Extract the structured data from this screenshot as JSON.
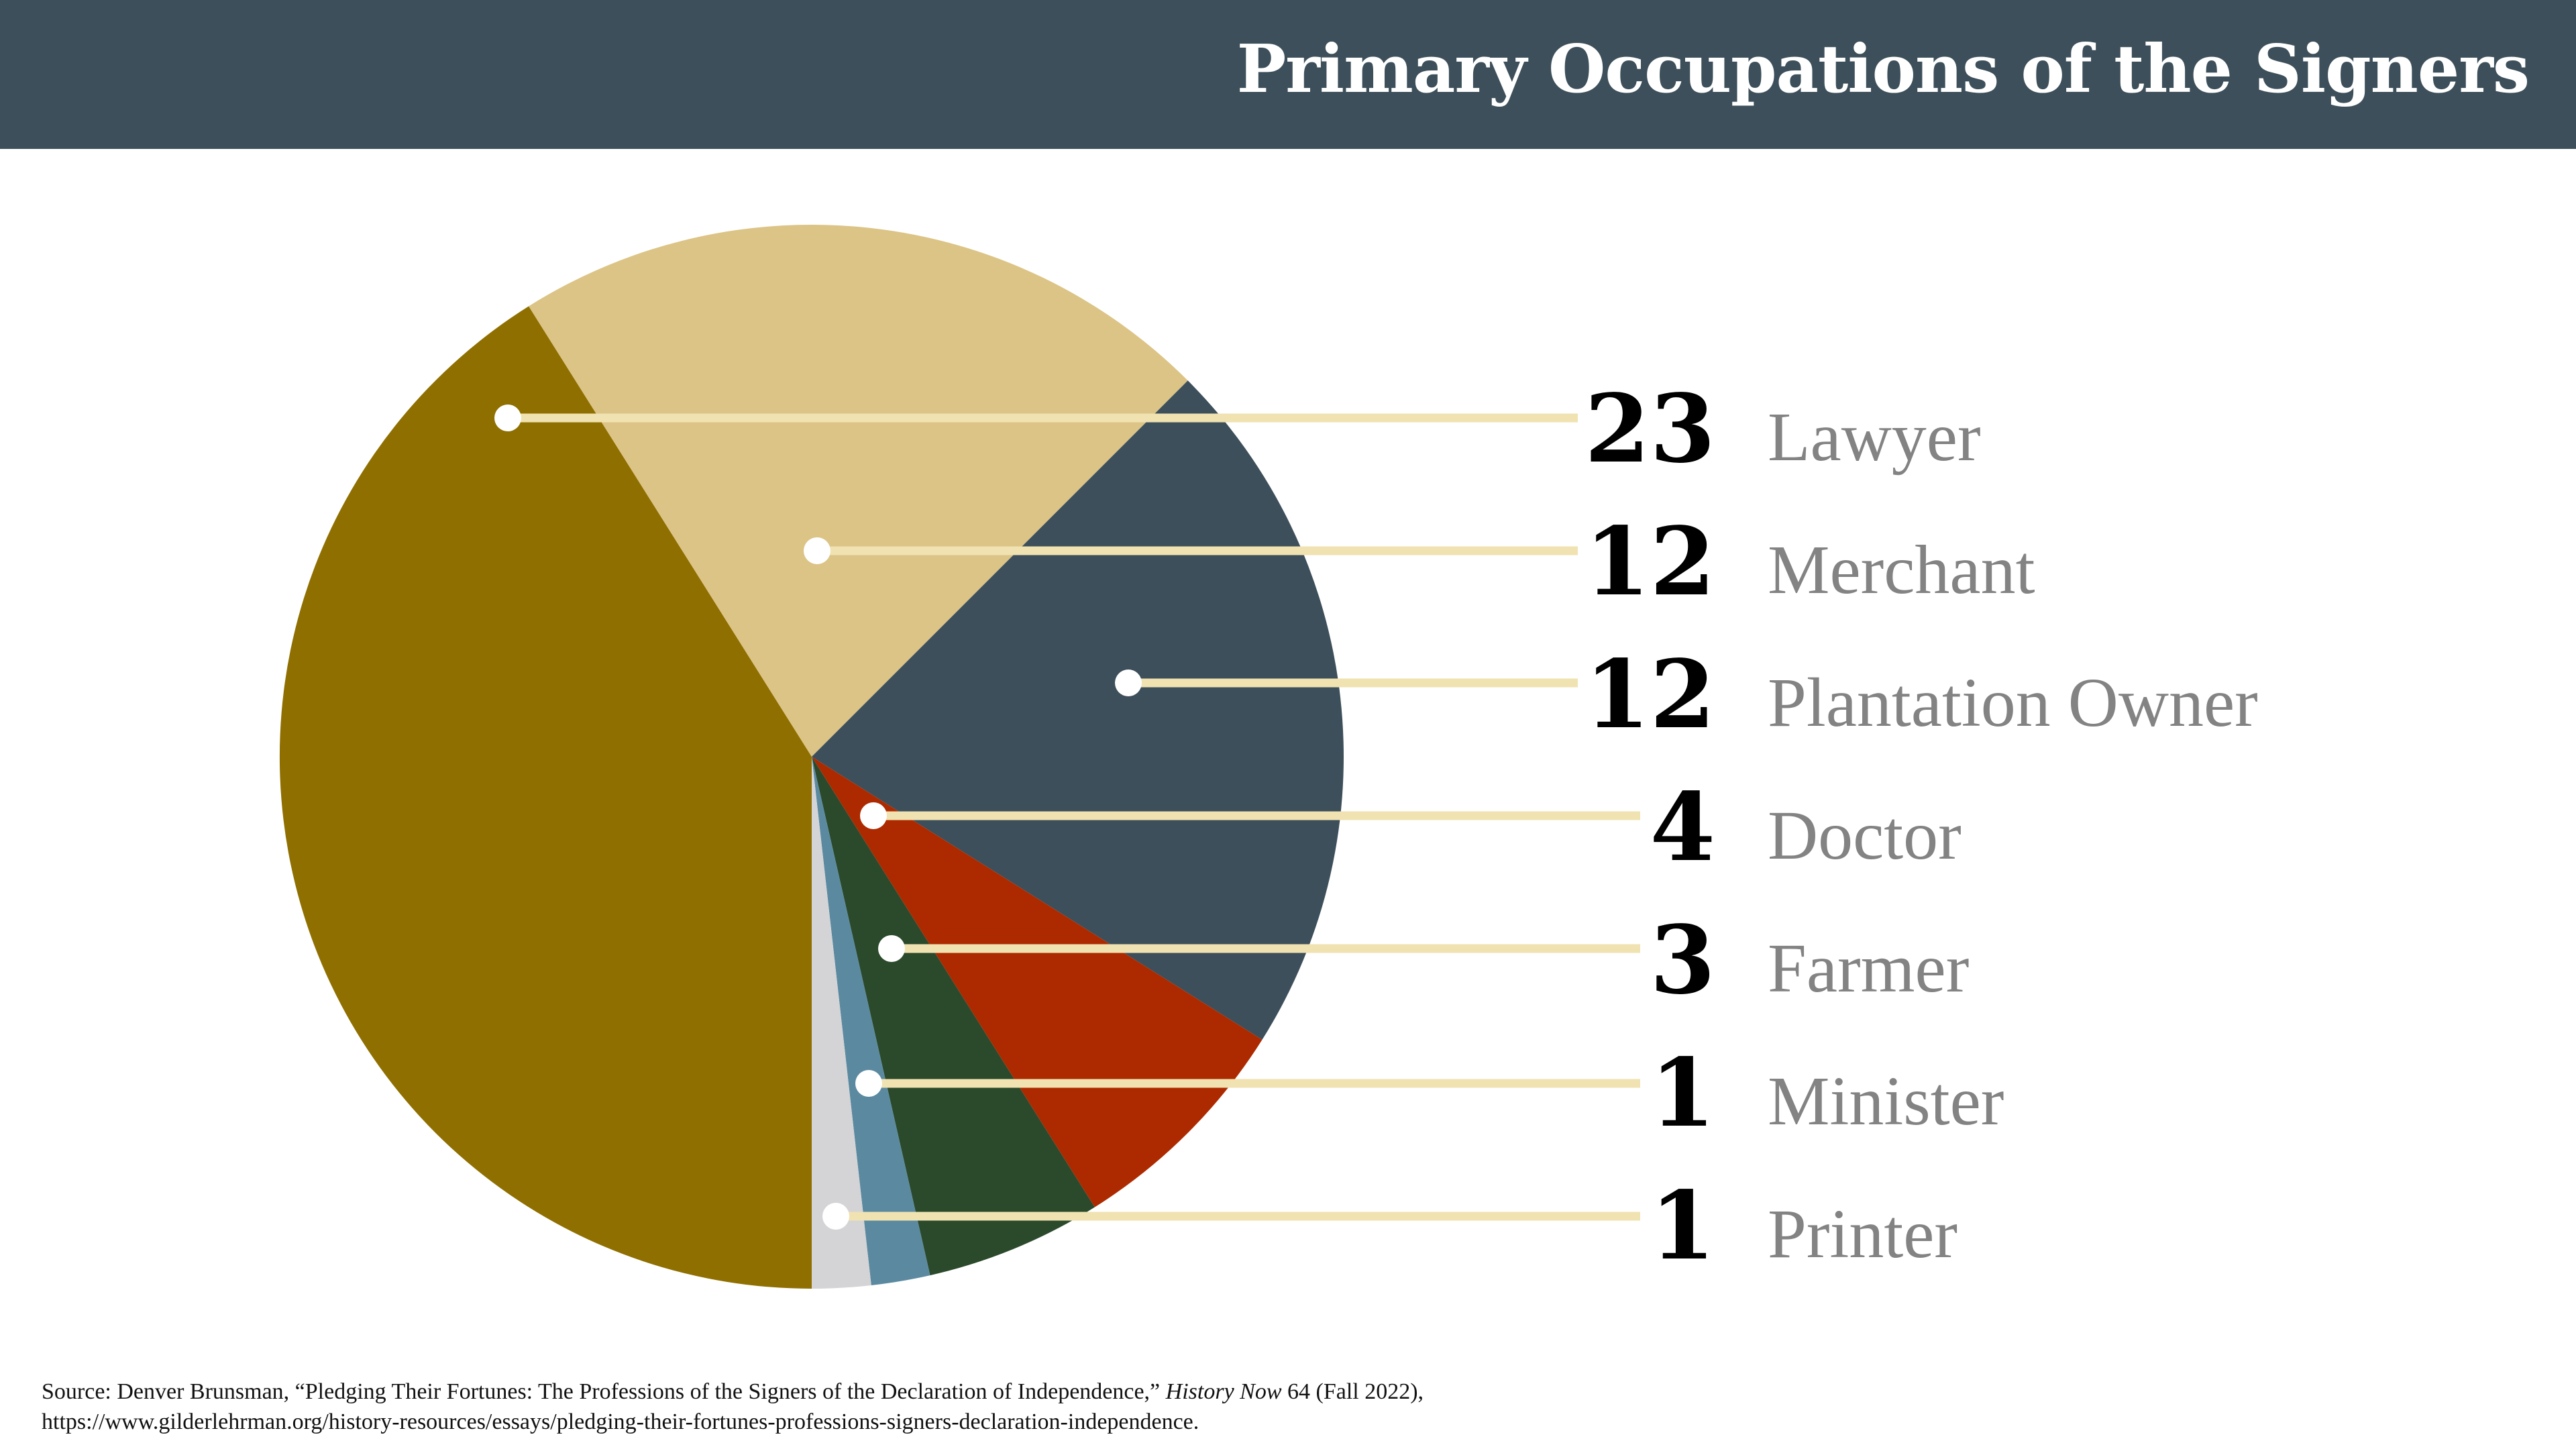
{
  "header": {
    "title": "Primary Occupations of the Signers"
  },
  "chart_data": {
    "type": "pie",
    "title": "Primary Occupations of the Signers",
    "slices": [
      {
        "label": "Lawyer",
        "value": 23,
        "color": "#8f6f00"
      },
      {
        "label": "Merchant",
        "value": 12,
        "color": "#dcc486"
      },
      {
        "label": "Plantation Owner",
        "value": 12,
        "color": "#3d4f5a"
      },
      {
        "label": "Doctor",
        "value": 4,
        "color": "#ad2a00"
      },
      {
        "label": "Farmer",
        "value": 3,
        "color": "#2b4a2c"
      },
      {
        "label": "Minister",
        "value": 1,
        "color": "#5b8aa0"
      },
      {
        "label": "Printer",
        "value": 1,
        "color": "#d4d4d6"
      }
    ],
    "leader_line_color": "#f0e2b1"
  },
  "source": {
    "prefix": "Source: Denver Brunsman, “Pledging Their Fortunes: The Professions of the Signers of the Declaration of Independence,” ",
    "journal": "History Now",
    "suffix": " 64 (Fall 2022),",
    "url": "https://www.gilderlehrman.org/history-resources/essays/pledging-their-fortunes-professions-signers-declaration-independence."
  }
}
